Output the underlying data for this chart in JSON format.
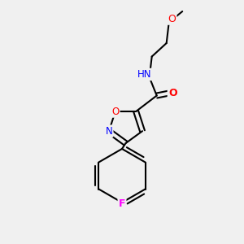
{
  "background_color": "#f0f0f0",
  "bond_color": "#000000",
  "atom_colors": {
    "O": "#ff0000",
    "N": "#0000ff",
    "F": "#ff00ff",
    "H": "#808080",
    "C": "#000000"
  },
  "figsize": [
    3.0,
    3.0
  ],
  "dpi": 100
}
